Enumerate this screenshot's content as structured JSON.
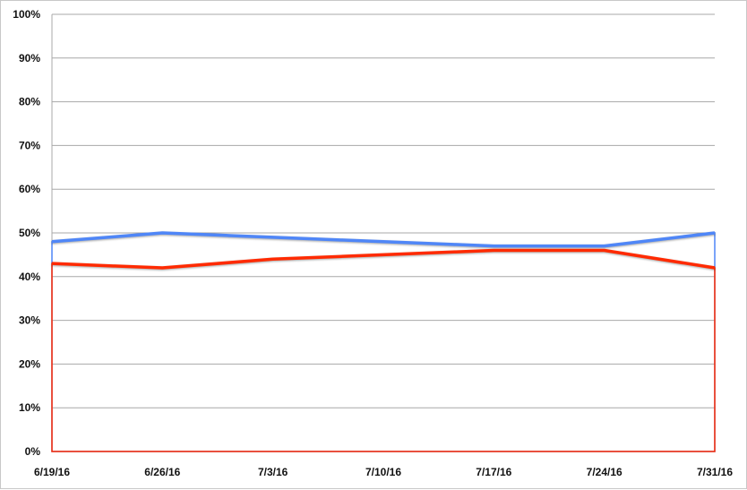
{
  "chart_data": {
    "type": "line",
    "title": "",
    "xlabel": "",
    "ylabel": "",
    "categories": [
      "6/19/16",
      "6/26/16",
      "7/3/16",
      "7/10/16",
      "7/17/16",
      "7/24/16",
      "7/31/16"
    ],
    "ylim": [
      0,
      100
    ],
    "y_ticks": [
      "0%",
      "10%",
      "20%",
      "30%",
      "40%",
      "50%",
      "60%",
      "70%",
      "80%",
      "90%",
      "100%"
    ],
    "grid": true,
    "legend": "none",
    "series": [
      {
        "values": [
          48,
          50,
          49,
          48,
          47,
          47,
          50
        ],
        "color": "#4f86f7"
      },
      {
        "values": [
          43,
          42,
          44,
          45,
          46,
          46,
          42
        ],
        "color": "#ff2a00"
      }
    ]
  }
}
